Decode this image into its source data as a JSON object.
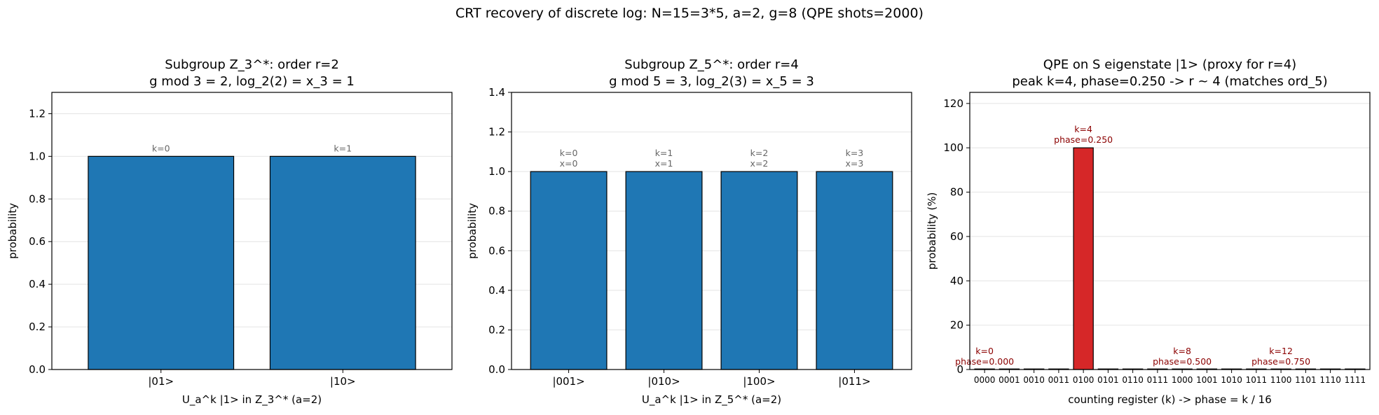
{
  "suptitle": "CRT recovery of discrete log:  N=15=3*5, a=2, g=8  (QPE shots=2000)",
  "chart_data": [
    {
      "type": "bar",
      "title_lines": [
        "Subgroup Z_3^*: order r=2",
        "g mod 3 = 2,  log_2(2) = x_3 = 1"
      ],
      "xlabel": "U_a^k |1> in Z_3^* (a=2)",
      "ylabel": "probability",
      "ylim": [
        0,
        1.3
      ],
      "yticks": [
        "0.0",
        "0.2",
        "0.4",
        "0.6",
        "0.8",
        "1.0",
        "1.2"
      ],
      "categories": [
        "|01>",
        "|10>"
      ],
      "values": [
        1.0,
        1.0
      ],
      "annotations": [
        [
          "k=0"
        ],
        [
          "k=1"
        ]
      ],
      "bar_color": "#1f77b4",
      "annotation_color": "#666666",
      "grid": "y"
    },
    {
      "type": "bar",
      "title_lines": [
        "Subgroup Z_5^*: order r=4",
        "g mod 5 = 3,  log_2(3) = x_5 = 3"
      ],
      "xlabel": "U_a^k |1> in Z_5^* (a=2)",
      "ylabel": "probability",
      "ylim": [
        0,
        1.4
      ],
      "yticks": [
        "0.0",
        "0.2",
        "0.4",
        "0.6",
        "0.8",
        "1.0",
        "1.2",
        "1.4"
      ],
      "categories": [
        "|001>",
        "|010>",
        "|100>",
        "|011>"
      ],
      "values": [
        1.0,
        1.0,
        1.0,
        1.0
      ],
      "annotations": [
        [
          "k=0",
          "x=0"
        ],
        [
          "k=1",
          "x=1"
        ],
        [
          "k=2",
          "x=2"
        ],
        [
          "k=3",
          "x=3"
        ]
      ],
      "bar_color": "#1f77b4",
      "annotation_color": "#666666",
      "grid": "y"
    },
    {
      "type": "bar",
      "title_lines": [
        "QPE on S eigenstate |1>  (proxy for r=4)",
        "peak k=4, phase=0.250 -> r ~ 4 (matches ord_5)"
      ],
      "xlabel": "counting register (k)  ->  phase = k / 16",
      "ylabel": "probability (%)",
      "ylim": [
        0,
        125
      ],
      "yticks": [
        "0",
        "20",
        "40",
        "60",
        "80",
        "100",
        "120"
      ],
      "categories": [
        "0000",
        "0001",
        "0010",
        "0011",
        "0100",
        "0101",
        "0110",
        "0111",
        "1000",
        "1001",
        "1010",
        "1011",
        "1100",
        "1101",
        "1110",
        "1111"
      ],
      "values": [
        0,
        0,
        0,
        0,
        100,
        0,
        0,
        0,
        0,
        0,
        0,
        0,
        0,
        0,
        0,
        0
      ],
      "highlight_index": 4,
      "bar_color": "#1f77b4",
      "highlight_color": "#d62728",
      "annotation_color": "#8b0000",
      "annotations": [
        {
          "index": 0,
          "lines": [
            "k=0",
            "phase=0.000"
          ]
        },
        {
          "index": 4,
          "lines": [
            "k=4",
            "phase=0.250"
          ]
        },
        {
          "index": 8,
          "lines": [
            "k=8",
            "phase=0.500"
          ]
        },
        {
          "index": 12,
          "lines": [
            "k=12",
            "phase=0.750"
          ]
        }
      ],
      "grid": "y"
    }
  ]
}
